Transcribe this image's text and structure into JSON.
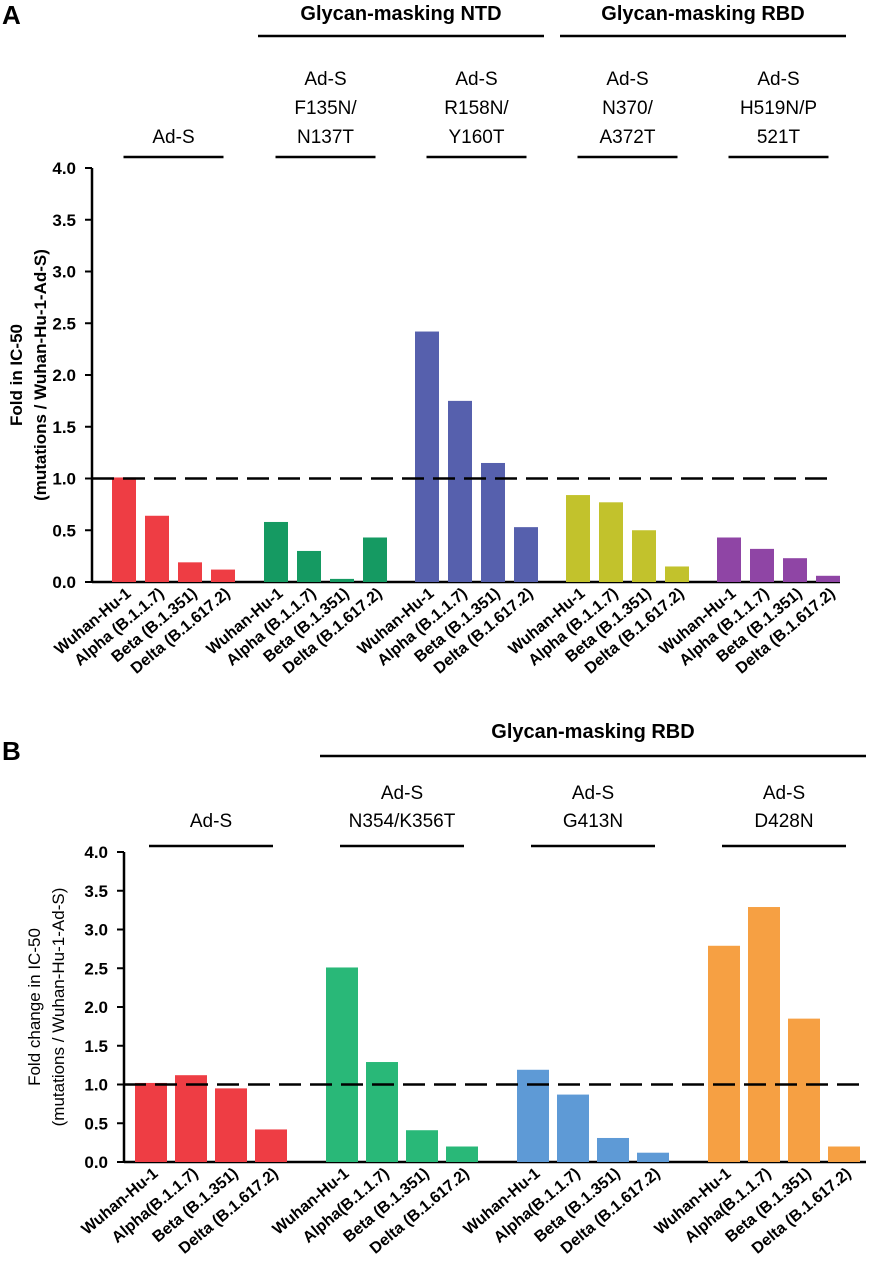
{
  "chart_data": [
    {
      "panel": "A",
      "type": "bar",
      "ylabel_line1": "Fold in IC-50",
      "ylabel_line2": "(mutations / Wuhan-Hu-1-Ad-S)",
      "ylim": [
        0,
        4
      ],
      "yticks": [
        "0.0",
        "0.5",
        "1.0",
        "1.5",
        "2.0",
        "2.5",
        "3.0",
        "3.5",
        "4.0"
      ],
      "reference_line": 1.0,
      "headers": [
        {
          "title": "Glycan-masking NTD",
          "spans": [
            1,
            2
          ]
        },
        {
          "title": "Glycan-masking RBD",
          "spans": [
            3,
            4
          ]
        }
      ],
      "groups": [
        {
          "label_lines": [
            "Ad-S"
          ],
          "color": "#ee3d44",
          "categories": [
            "Wuhan-Hu-1",
            "Alpha (B.1.1.7)",
            "Beta (B.1.351)",
            "Delta (B.1.617.2)"
          ],
          "values": [
            1.01,
            0.64,
            0.19,
            0.12
          ]
        },
        {
          "label_lines": [
            "Ad-S",
            "F135N/",
            "N137T"
          ],
          "color": "#159a62",
          "categories": [
            "Wuhan-Hu-1",
            "Alpha (B.1.1.7)",
            "Beta (B.1.351)",
            "Delta (B.1.617.2)"
          ],
          "values": [
            0.58,
            0.3,
            0.03,
            0.43
          ]
        },
        {
          "label_lines": [
            "Ad-S",
            "R158N/",
            "Y160T"
          ],
          "color": "#5660ad",
          "categories": [
            "Wuhan-Hu-1",
            "Alpha (B.1.1.7)",
            "Beta (B.1.351)",
            "Delta (B.1.617.2)"
          ],
          "values": [
            2.42,
            1.75,
            1.15,
            0.53
          ]
        },
        {
          "label_lines": [
            "Ad-S",
            "N370/",
            "A372T"
          ],
          "color": "#c2c22c",
          "categories": [
            "Wuhan-Hu-1",
            "Alpha (B.1.1.7)",
            "Beta (B.1.351)",
            "Delta (B.1.617.2)"
          ],
          "values": [
            0.84,
            0.77,
            0.5,
            0.15
          ]
        },
        {
          "label_lines": [
            "Ad-S",
            "H519N/P",
            "521T"
          ],
          "color": "#8f45a5",
          "categories": [
            "Wuhan-Hu-1",
            "Alpha (B.1.1.7)",
            "Beta (B.1.351)",
            "Delta (B.1.617.2)"
          ],
          "values": [
            0.43,
            0.32,
            0.23,
            0.06
          ]
        }
      ]
    },
    {
      "panel": "B",
      "type": "bar",
      "ylabel_line1": "Fold change in IC-50",
      "ylabel_line2": "(mutations / Wuhan-Hu-1-Ad-S)",
      "ylim": [
        0,
        4
      ],
      "yticks": [
        "0.0",
        "0.5",
        "1.0",
        "1.5",
        "2.0",
        "2.5",
        "3.0",
        "3.5",
        "4.0"
      ],
      "reference_line": 1.0,
      "headers": [
        {
          "title": "Glycan-masking RBD",
          "spans": [
            1,
            3
          ]
        }
      ],
      "groups": [
        {
          "label_lines": [
            "Ad-S"
          ],
          "color": "#ee3d44",
          "categories": [
            "Wuhan-Hu-1",
            "Alpha(B.1.1.7)",
            "Beta (B.1.351)",
            "Delta (B.1.617.2)"
          ],
          "values": [
            1.02,
            1.12,
            0.95,
            0.42
          ]
        },
        {
          "label_lines": [
            "Ad-S",
            "N354/K356T"
          ],
          "color": "#29b878",
          "categories": [
            "Wuhan-Hu-1",
            "Alpha(B.1.1.7)",
            "Beta (B.1.351)",
            "Delta (B.1.617.2)"
          ],
          "values": [
            2.51,
            1.29,
            0.41,
            0.2
          ]
        },
        {
          "label_lines": [
            "Ad-S",
            "G413N"
          ],
          "color": "#5e9ad6",
          "categories": [
            "Wuhan-Hu-1",
            "Alpha(B.1.1.7)",
            "Beta (B.1.351)",
            "Delta (B.1.617.2)"
          ],
          "values": [
            1.19,
            0.87,
            0.31,
            0.12
          ]
        },
        {
          "label_lines": [
            "Ad-S",
            "D428N"
          ],
          "color": "#f6a043",
          "categories": [
            "Wuhan-Hu-1",
            "Alpha(B.1.1.7)",
            "Beta (B.1.351)",
            "Delta (B.1.617.2)"
          ],
          "values": [
            2.79,
            3.29,
            1.85,
            0.2
          ]
        }
      ]
    }
  ]
}
